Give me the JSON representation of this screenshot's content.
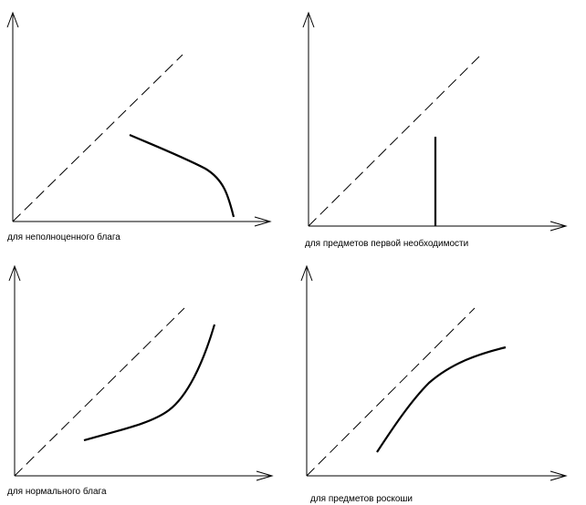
{
  "panels": [
    {
      "id": "inferior",
      "caption": "для неполноценного блага"
    },
    {
      "id": "necessity",
      "caption": "для предметов первой необходимости"
    },
    {
      "id": "normal",
      "caption": "для нормального блага"
    },
    {
      "id": "luxury",
      "caption": "для предметов роскоши"
    }
  ],
  "colors": {
    "ink": "#000000",
    "background": "#ffffff"
  }
}
